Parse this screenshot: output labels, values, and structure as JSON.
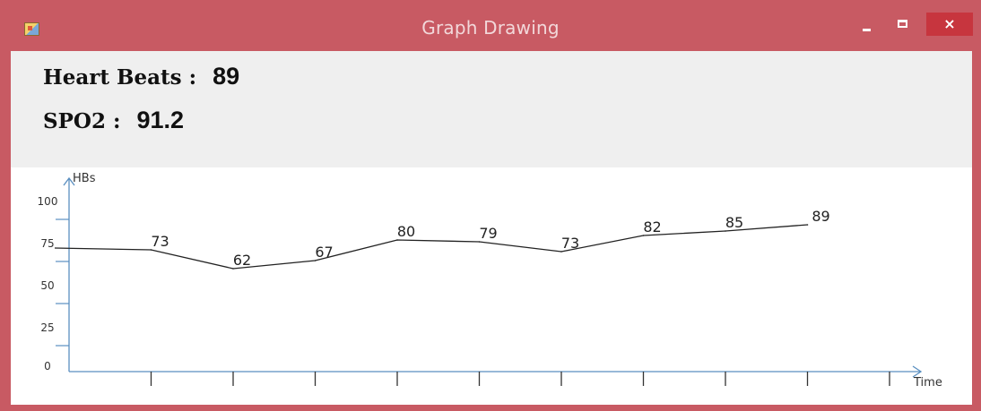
{
  "window": {
    "title": "Graph Drawing",
    "icon": "app-icon",
    "controls": {
      "minimize": "minimize-icon",
      "maximize": "maximize-icon",
      "close": "×"
    },
    "colors": {
      "frame": "#c85a63",
      "close_button": "#c7353e",
      "panel": "#efefef"
    }
  },
  "readings": {
    "heart_beats_label": "Heart Beats :",
    "heart_beats_value": "89",
    "spo2_label": "SPO2 :",
    "spo2_value": "91.2"
  },
  "chart_data": {
    "type": "line",
    "ylabel": "HBs",
    "xlabel": "Time",
    "ylim": [
      0,
      100
    ],
    "y_ticks": [
      "0",
      "25",
      "50",
      "75",
      "100"
    ],
    "x_ticks_count": 10,
    "values": [
      73,
      62,
      67,
      80,
      79,
      73,
      82,
      85,
      89
    ],
    "start_value": 75,
    "line_color": "#222222",
    "axis_color": "#5a8fc0",
    "grid": false
  }
}
